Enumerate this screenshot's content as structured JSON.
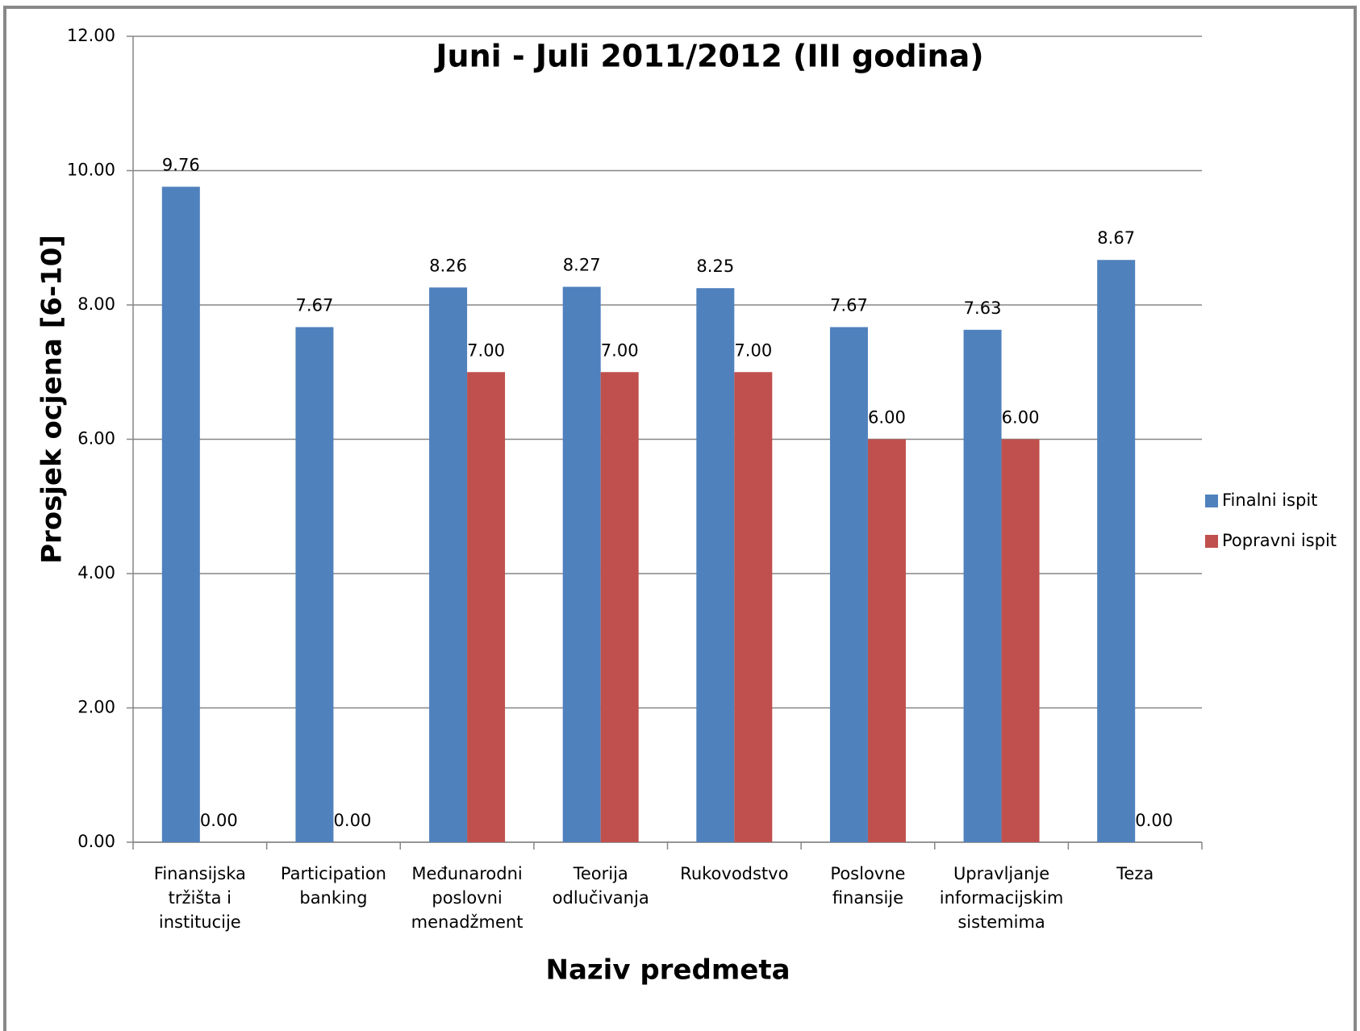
{
  "chart_data": {
    "type": "bar",
    "title": "Juni - Juli 2011/2012 (III godina)",
    "x_label": "Naziv predmeta",
    "y_label": "Prosjek ocjena [6-10]",
    "categories": [
      "Finansijska tržišta i institucije",
      "Participation banking",
      "Međunarodni poslovni menadžment",
      "Teorija odlučivanja",
      "Rukovodstvo",
      "Poslovne finansije",
      "Upravljanje informacijskim sistemima",
      "Teza"
    ],
    "series": [
      {
        "name": "Finalni ispit",
        "color": "#4f81bd",
        "values": [
          9.76,
          7.67,
          8.26,
          8.27,
          8.25,
          7.67,
          7.63,
          8.67
        ],
        "value_labels": [
          "9.76",
          "7.67",
          "8.26",
          "8.27",
          "8.25",
          "7.67",
          "7.63",
          "8.67"
        ]
      },
      {
        "name": "Popravni ispit",
        "color": "#c0504d",
        "values": [
          0,
          0,
          7,
          7,
          7,
          6,
          6,
          0
        ],
        "value_labels": [
          "0.00",
          "0.00",
          "7.00",
          "7.00",
          "7.00",
          "6.00",
          "6.00",
          "0.00"
        ]
      }
    ],
    "ylim": [
      0,
      12
    ],
    "yticks": [
      {
        "value": 0,
        "label": "0.00"
      },
      {
        "value": 2,
        "label": "2.00"
      },
      {
        "value": 4,
        "label": "4.00"
      },
      {
        "value": 6,
        "label": "6.00"
      },
      {
        "value": 8,
        "label": "8.00"
      },
      {
        "value": 10,
        "label": "10.00"
      },
      {
        "value": 12,
        "label": "12.00"
      }
    ],
    "grid": true,
    "legend": "right"
  }
}
